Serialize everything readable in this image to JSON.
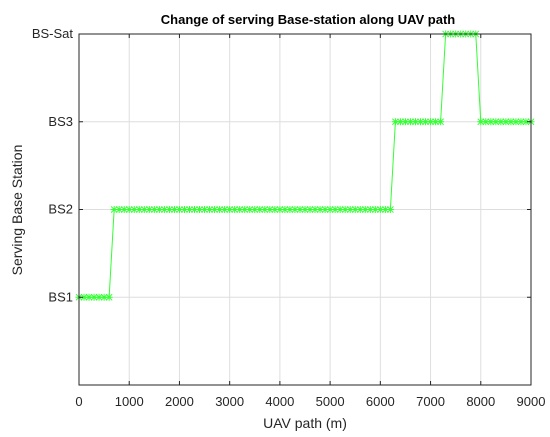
{
  "chart_data": {
    "type": "line",
    "title": "Change of serving Base-station along UAV path",
    "xlabel": "UAV path (m)",
    "ylabel": "Serving Base Station",
    "xlim": [
      0,
      9000
    ],
    "ylim": [
      0,
      4
    ],
    "xticks": [
      0,
      1000,
      2000,
      3000,
      4000,
      5000,
      6000,
      7000,
      8000,
      9000
    ],
    "yticks": [
      {
        "value": 1,
        "label": "BS1"
      },
      {
        "value": 2,
        "label": "BS2"
      },
      {
        "value": 3,
        "label": "BS3"
      },
      {
        "value": 4,
        "label": "BS-Sat"
      }
    ],
    "grid": true,
    "series": [
      {
        "color": "#33ff33",
        "marker": "star",
        "segments": [
          {
            "x_start": 0,
            "x_end": 600,
            "value": 1
          },
          {
            "x_start": 700,
            "x_end": 6200,
            "value": 2
          },
          {
            "x_start": 6300,
            "x_end": 7200,
            "value": 3
          },
          {
            "x_start": 7300,
            "x_end": 7900,
            "value": 4
          },
          {
            "x_start": 8000,
            "x_end": 9000,
            "value": 3
          }
        ],
        "sample_step": 100
      }
    ]
  }
}
